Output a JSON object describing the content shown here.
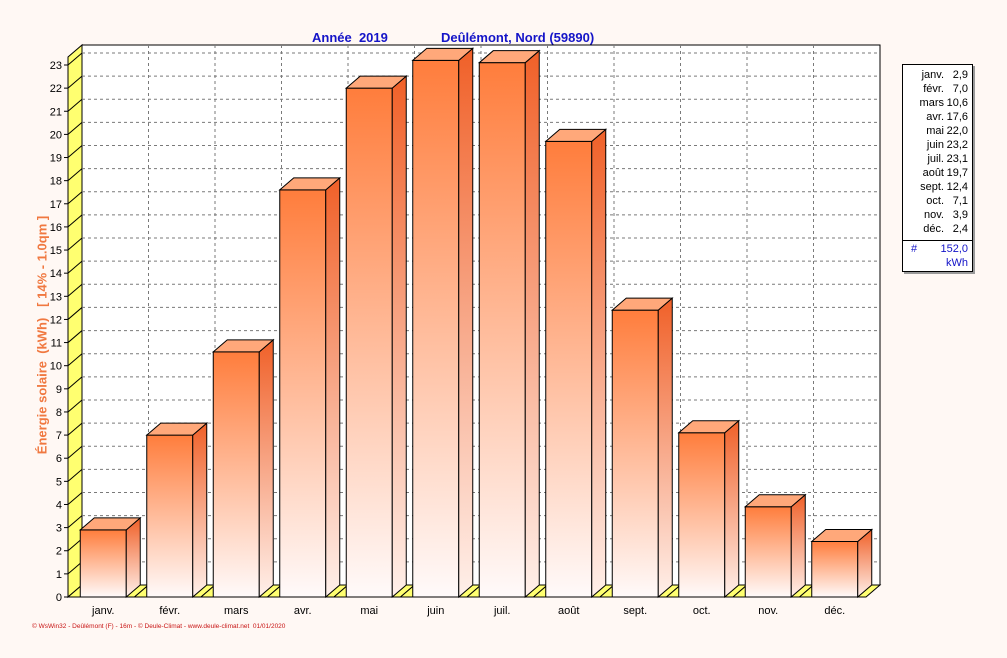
{
  "chart_data": {
    "type": "bar",
    "title_left": "Année  2019",
    "title_right": "Deûlémont, Nord (59890)",
    "ylabel": "Énergie solaire  (kWh)   [ 14% - 1.0qm ]",
    "ylim": [
      0,
      23
    ],
    "yticks": [
      0,
      1,
      2,
      3,
      4,
      5,
      6,
      7,
      8,
      9,
      10,
      11,
      12,
      13,
      14,
      15,
      16,
      17,
      18,
      19,
      20,
      21,
      22,
      23
    ],
    "categories": [
      "janv.",
      "févr.",
      "mars",
      "avr.",
      "mai",
      "juin",
      "juil.",
      "août",
      "sept.",
      "oct.",
      "nov.",
      "déc."
    ],
    "values": [
      2.9,
      7.0,
      10.6,
      17.6,
      22.0,
      23.2,
      23.1,
      19.7,
      12.4,
      7.1,
      3.9,
      2.4
    ],
    "grid": true,
    "legend_placement": "right",
    "colors": {
      "bar_top": "#ff7d3c",
      "bar_bottom": "#fffafa",
      "floor": "#ffff70",
      "title": "#1414c8",
      "ylabel": "#f07840",
      "grid": "#7a7a7a"
    }
  },
  "legend": {
    "rows": [
      {
        "name": "janv.",
        "value": "2,9"
      },
      {
        "name": "févr.",
        "value": "7,0"
      },
      {
        "name": "mars",
        "value": "10,6"
      },
      {
        "name": "avr.",
        "value": "17,6"
      },
      {
        "name": "mai",
        "value": "22,0"
      },
      {
        "name": "juin",
        "value": "23,2"
      },
      {
        "name": "juil.",
        "value": "23,1"
      },
      {
        "name": "août",
        "value": "19,7"
      },
      {
        "name": "sept.",
        "value": "12,4"
      },
      {
        "name": "oct.",
        "value": "7,1"
      },
      {
        "name": "nov.",
        "value": "3,9"
      },
      {
        "name": "déc.",
        "value": "2,4"
      }
    ],
    "total_symbol": "#",
    "total": "152,0",
    "unit": "kWh"
  },
  "footer": "© WsWin32 - Deûlémont (F) - 16m - © Deule-Climat - www.deule-climat.net  01/01/2020"
}
